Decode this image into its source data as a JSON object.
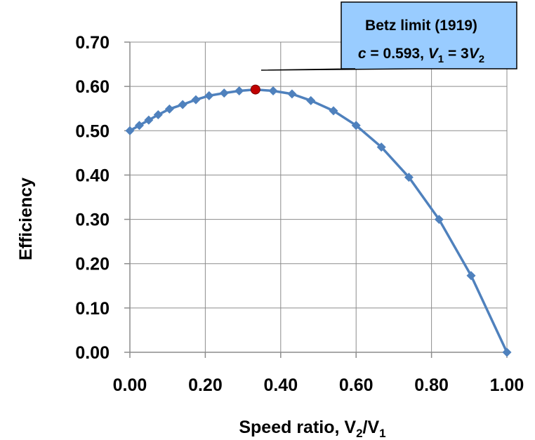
{
  "chart_data": {
    "type": "line",
    "title": "",
    "xlabel": {
      "main": "Speed ratio, V",
      "sub1": "2",
      "mid": "/V",
      "sub2": "1"
    },
    "ylabel": "Efficiency",
    "xlim": [
      0,
      1
    ],
    "ylim": [
      0,
      0.7
    ],
    "x_ticks": [
      "0.00",
      "0.20",
      "0.40",
      "0.60",
      "0.80",
      "1.00"
    ],
    "y_ticks": [
      "0.00",
      "0.10",
      "0.20",
      "0.30",
      "0.40",
      "0.50",
      "0.60",
      "0.70"
    ],
    "grid": true,
    "legend": "none",
    "series_color": "#4F81BD",
    "highlight_color": "#C00000",
    "x": [
      0.0,
      0.025,
      0.05,
      0.075,
      0.105,
      0.14,
      0.175,
      0.21,
      0.25,
      0.29,
      0.333,
      0.38,
      0.43,
      0.48,
      0.54,
      0.6,
      0.667,
      0.74,
      0.82,
      0.905,
      1.0
    ],
    "y": [
      0.5,
      0.512,
      0.524,
      0.536,
      0.549,
      0.559,
      0.57,
      0.579,
      0.585,
      0.59,
      0.593,
      0.59,
      0.583,
      0.568,
      0.545,
      0.512,
      0.463,
      0.395,
      0.3,
      0.173,
      0.0
    ],
    "highlight": {
      "x": 0.333,
      "y": 0.593
    },
    "annotation": {
      "line1": "Betz limit (1919)",
      "line2": {
        "c": "c",
        "eq": " = 0.593, ",
        "v1": "V",
        "v1sub": "1",
        "mid": " = 3",
        "v2": "V",
        "v2sub": "2"
      },
      "fill": "#99CCFF"
    }
  }
}
